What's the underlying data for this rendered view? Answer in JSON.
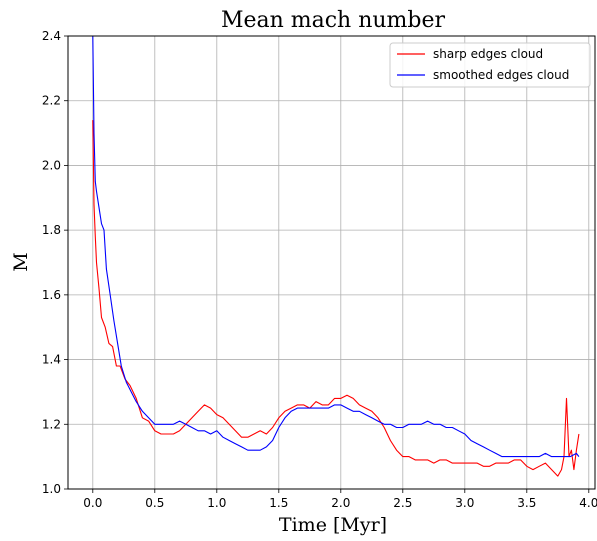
{
  "chart_data": {
    "type": "line",
    "title": "Mean mach number",
    "xlabel": "Time [Myr]",
    "ylabel": "M",
    "xlim": [
      -0.2,
      4.05
    ],
    "ylim": [
      1.0,
      2.4
    ],
    "xticks": [
      0.0,
      0.5,
      1.0,
      1.5,
      2.0,
      2.5,
      3.0,
      3.5,
      4.0
    ],
    "xtick_labels": [
      "0.0",
      "0.5",
      "1.0",
      "1.5",
      "2.0",
      "2.5",
      "3.0",
      "3.5",
      "4.0"
    ],
    "yticks": [
      1.0,
      1.2,
      1.4,
      1.6,
      1.8,
      2.0,
      2.2,
      2.4
    ],
    "ytick_labels": [
      "1.0",
      "1.2",
      "1.4",
      "1.6",
      "1.8",
      "2.0",
      "2.2",
      "2.4"
    ],
    "grid": true,
    "legend_position": "top-right",
    "series": [
      {
        "name": "sharp edges cloud",
        "color": "#ff0000",
        "x": [
          0.0,
          0.01,
          0.02,
          0.03,
          0.05,
          0.07,
          0.1,
          0.13,
          0.16,
          0.19,
          0.22,
          0.26,
          0.3,
          0.35,
          0.4,
          0.45,
          0.5,
          0.55,
          0.6,
          0.65,
          0.7,
          0.75,
          0.8,
          0.85,
          0.9,
          0.95,
          1.0,
          1.05,
          1.1,
          1.15,
          1.2,
          1.25,
          1.3,
          1.35,
          1.4,
          1.45,
          1.5,
          1.55,
          1.6,
          1.65,
          1.7,
          1.75,
          1.8,
          1.85,
          1.9,
          1.95,
          2.0,
          2.05,
          2.1,
          2.15,
          2.2,
          2.25,
          2.3,
          2.35,
          2.4,
          2.45,
          2.5,
          2.55,
          2.6,
          2.65,
          2.7,
          2.75,
          2.8,
          2.85,
          2.9,
          2.95,
          3.0,
          3.05,
          3.1,
          3.15,
          3.2,
          3.25,
          3.3,
          3.35,
          3.4,
          3.45,
          3.5,
          3.55,
          3.6,
          3.65,
          3.7,
          3.75,
          3.78,
          3.8,
          3.82,
          3.84,
          3.86,
          3.88,
          3.9,
          3.92
        ],
        "y": [
          2.14,
          1.88,
          1.78,
          1.7,
          1.62,
          1.53,
          1.5,
          1.45,
          1.44,
          1.38,
          1.38,
          1.34,
          1.32,
          1.28,
          1.22,
          1.21,
          1.18,
          1.17,
          1.17,
          1.17,
          1.18,
          1.2,
          1.22,
          1.24,
          1.26,
          1.25,
          1.23,
          1.22,
          1.2,
          1.18,
          1.16,
          1.16,
          1.17,
          1.18,
          1.17,
          1.19,
          1.22,
          1.24,
          1.25,
          1.26,
          1.26,
          1.25,
          1.27,
          1.26,
          1.26,
          1.28,
          1.28,
          1.29,
          1.28,
          1.26,
          1.25,
          1.24,
          1.22,
          1.19,
          1.15,
          1.12,
          1.1,
          1.1,
          1.09,
          1.09,
          1.09,
          1.08,
          1.09,
          1.09,
          1.08,
          1.08,
          1.08,
          1.08,
          1.08,
          1.07,
          1.07,
          1.08,
          1.08,
          1.08,
          1.09,
          1.09,
          1.07,
          1.06,
          1.07,
          1.08,
          1.06,
          1.04,
          1.06,
          1.1,
          1.28,
          1.1,
          1.12,
          1.06,
          1.12,
          1.17
        ]
      },
      {
        "name": "smoothed edges cloud",
        "color": "#0000ff",
        "x": [
          0.0,
          0.01,
          0.02,
          0.03,
          0.05,
          0.07,
          0.09,
          0.11,
          0.14,
          0.17,
          0.2,
          0.23,
          0.27,
          0.31,
          0.35,
          0.4,
          0.45,
          0.5,
          0.55,
          0.6,
          0.65,
          0.7,
          0.75,
          0.8,
          0.85,
          0.9,
          0.95,
          1.0,
          1.05,
          1.1,
          1.15,
          1.2,
          1.25,
          1.3,
          1.35,
          1.4,
          1.45,
          1.5,
          1.55,
          1.6,
          1.65,
          1.7,
          1.75,
          1.8,
          1.85,
          1.9,
          1.95,
          2.0,
          2.05,
          2.1,
          2.15,
          2.2,
          2.25,
          2.3,
          2.35,
          2.4,
          2.45,
          2.5,
          2.55,
          2.6,
          2.65,
          2.7,
          2.75,
          2.8,
          2.85,
          2.9,
          2.95,
          3.0,
          3.05,
          3.1,
          3.15,
          3.2,
          3.25,
          3.3,
          3.35,
          3.4,
          3.45,
          3.5,
          3.55,
          3.6,
          3.65,
          3.7,
          3.75,
          3.8,
          3.85,
          3.9,
          3.92
        ],
        "y": [
          2.4,
          2.1,
          1.95,
          1.92,
          1.87,
          1.82,
          1.8,
          1.68,
          1.6,
          1.52,
          1.45,
          1.38,
          1.33,
          1.3,
          1.27,
          1.24,
          1.22,
          1.2,
          1.2,
          1.2,
          1.2,
          1.21,
          1.2,
          1.19,
          1.18,
          1.18,
          1.17,
          1.18,
          1.16,
          1.15,
          1.14,
          1.13,
          1.12,
          1.12,
          1.12,
          1.13,
          1.15,
          1.19,
          1.22,
          1.24,
          1.25,
          1.25,
          1.25,
          1.25,
          1.25,
          1.25,
          1.26,
          1.26,
          1.25,
          1.24,
          1.24,
          1.23,
          1.22,
          1.21,
          1.2,
          1.2,
          1.19,
          1.19,
          1.2,
          1.2,
          1.2,
          1.21,
          1.2,
          1.2,
          1.19,
          1.19,
          1.18,
          1.17,
          1.15,
          1.14,
          1.13,
          1.12,
          1.11,
          1.1,
          1.1,
          1.1,
          1.1,
          1.1,
          1.1,
          1.1,
          1.11,
          1.1,
          1.1,
          1.1,
          1.1,
          1.11,
          1.1
        ]
      }
    ]
  }
}
